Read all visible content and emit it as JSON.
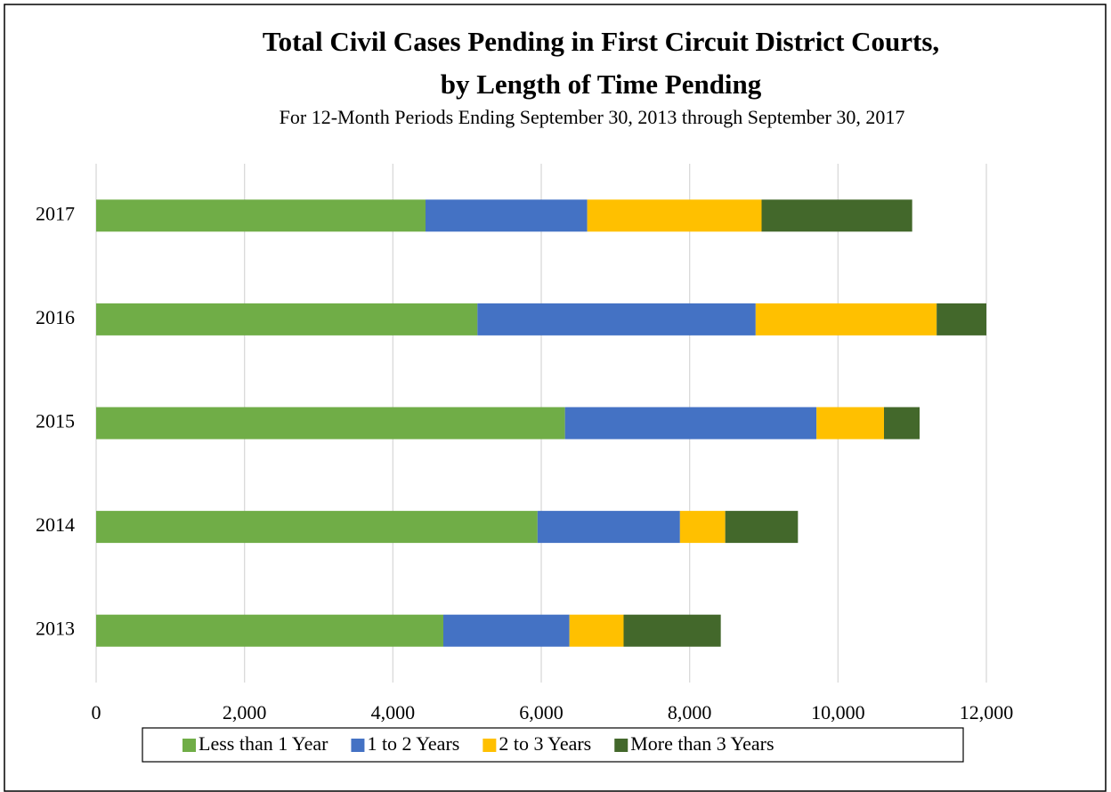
{
  "chart_data": {
    "type": "bar",
    "orientation": "horizontal",
    "stacked": true,
    "title": [
      "Total Civil Cases Pending in First Circuit District Courts,",
      "by Length of Time Pending"
    ],
    "subtitle": "For 12-Month Periods Ending September 30, 2013 through September 30, 2017",
    "categories": [
      "2013",
      "2014",
      "2015",
      "2016",
      "2017"
    ],
    "series": [
      {
        "name": "Less than 1 Year",
        "color": "#70ad47",
        "values": [
          4680,
          5950,
          6320,
          5140,
          4440
        ]
      },
      {
        "name": "1 to 2 Years",
        "color": "#4472c4",
        "values": [
          1700,
          1920,
          3390,
          3750,
          2180
        ]
      },
      {
        "name": "2 to 3 Years",
        "color": "#ffc000",
        "values": [
          730,
          610,
          910,
          2440,
          2350
        ]
      },
      {
        "name": "More than 3 Years",
        "color": "#43682b",
        "values": [
          1310,
          980,
          480,
          670,
          2030
        ]
      }
    ],
    "xlim": [
      0,
      12000
    ],
    "xticks": [
      0,
      {
        "value": 2000,
        "label": "2,000"
      },
      {
        "value": 4000,
        "label": "4,000"
      },
      {
        "value": 6000,
        "label": "6,000"
      },
      {
        "value": 8000,
        "label": "8,000"
      },
      {
        "value": 10000,
        "label": "10,000"
      },
      {
        "value": 12000,
        "label": "12,000"
      }
    ],
    "grid": true,
    "legend": "bottom"
  }
}
